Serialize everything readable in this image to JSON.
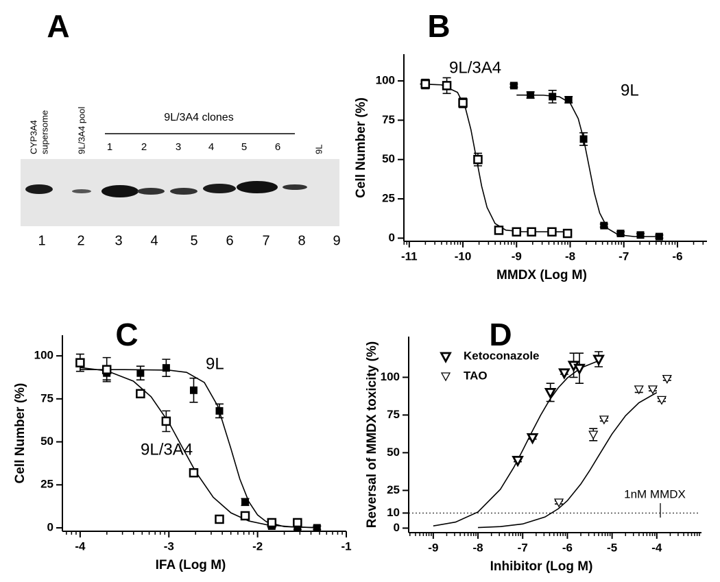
{
  "panel_a": {
    "label": "A",
    "group_label": "9L/3A4 clones",
    "lane_labels": [
      "CYP3A4",
      "supersome",
      "9L/3A4 pool",
      "1",
      "2",
      "3",
      "4",
      "5",
      "6",
      "9L"
    ],
    "lane_numbers": [
      "1",
      "2",
      "3",
      "4",
      "5",
      "6",
      "7",
      "8",
      "9"
    ]
  },
  "chart_data": [
    {
      "type": "scatter",
      "label": "B",
      "xlabel": "MMDX (Log M)",
      "ylabel": "Cell Number (%)",
      "xlim": [
        -11.1,
        -5.45
      ],
      "xticks": [
        -11,
        -10,
        -9,
        -8,
        -7,
        -6
      ],
      "ylim": [
        -2,
        117
      ],
      "yticks": [
        0,
        25,
        50,
        75,
        100
      ],
      "log_minor_ticks": true,
      "legend": "inline",
      "series": [
        {
          "name": "9L/3A4",
          "marker": "square-open",
          "color": "#000000",
          "x": [
            -10.7,
            -10.3,
            -10.0,
            -9.72,
            -9.33,
            -9.0,
            -8.72,
            -8.34,
            -8.05
          ],
          "values": [
            98,
            97,
            86,
            50,
            5,
            4,
            4,
            4,
            3
          ],
          "errors": [
            3,
            5,
            3,
            4,
            1,
            1,
            1,
            1,
            1
          ],
          "fit_x": [
            -10.8,
            -10.4,
            -10.1,
            -9.95,
            -9.85,
            -9.75,
            -9.65,
            -9.55,
            -9.4,
            -9.2,
            -8.9,
            -8.0
          ],
          "fit_values": [
            98,
            97.5,
            92.7,
            82.4,
            69,
            51,
            33,
            19.6,
            9.3,
            5.1,
            4.1,
            4
          ]
        },
        {
          "name": "9L",
          "marker": "square-filled",
          "color": "#000000",
          "x": [
            -9.05,
            -8.74,
            -8.33,
            -8.03,
            -7.75,
            -7.37,
            -7.06,
            -6.69,
            -6.34
          ],
          "values": [
            97,
            91,
            90,
            88,
            63,
            8,
            3,
            2,
            1
          ],
          "errors": [
            1,
            2,
            4,
            2,
            4,
            1,
            1,
            1,
            1
          ],
          "fit_x": [
            -9.0,
            -8.5,
            -8.2,
            -8.0,
            -7.85,
            -7.75,
            -7.65,
            -7.55,
            -7.45,
            -7.3,
            -7.1,
            -6.8,
            -6.3
          ],
          "fit_values": [
            91,
            90.9,
            89.9,
            85.9,
            76,
            63.2,
            46,
            28.8,
            16,
            6.1,
            2.1,
            1,
            1
          ]
        }
      ]
    },
    {
      "type": "scatter",
      "label": "C",
      "xlabel": "IFA (Log M)",
      "ylabel": "Cell Number (%)",
      "xlim": [
        -4.2,
        -1
      ],
      "xticks": [
        -4,
        -3,
        -2,
        -1
      ],
      "ylim": [
        -2,
        112
      ],
      "yticks": [
        0,
        25,
        50,
        75,
        100
      ],
      "log_minor_ticks": true,
      "legend": "inline",
      "series": [
        {
          "name": "9L",
          "marker": "square-filled",
          "color": "#000000",
          "x": [
            -3.7,
            -3.32,
            -3.03,
            -2.72,
            -2.43,
            -2.14,
            -1.84,
            -1.55,
            -1.33
          ],
          "values": [
            90,
            90,
            93,
            80,
            68,
            15,
            1,
            0,
            0
          ],
          "errors": [
            4,
            4,
            5,
            7,
            4,
            2,
            1,
            1,
            1
          ],
          "fit_x": [
            -4.0,
            -3.5,
            -3.0,
            -2.8,
            -2.6,
            -2.45,
            -2.3,
            -2.2,
            -2.1,
            -2.0,
            -1.9,
            -1.7,
            -1.3
          ],
          "fit_values": [
            92,
            92,
            91.7,
            90.4,
            84.5,
            70.9,
            46,
            28.4,
            15.3,
            7.5,
            3.5,
            0.7,
            0
          ]
        },
        {
          "name": "9L/3A4",
          "marker": "square-open",
          "color": "#000000",
          "x": [
            -4.0,
            -3.7,
            -3.32,
            -3.03,
            -2.72,
            -2.43,
            -2.14,
            -1.84,
            -1.55
          ],
          "values": [
            96,
            92,
            78,
            62,
            32,
            5,
            7,
            3,
            3
          ],
          "errors": [
            5,
            7,
            1,
            6,
            1,
            1,
            1,
            1,
            1
          ],
          "fit_x": [
            -4.0,
            -3.7,
            -3.4,
            -3.2,
            -3.0,
            -2.85,
            -2.7,
            -2.5,
            -2.3,
            -2.1,
            -1.9,
            -1.6,
            -1.3
          ],
          "fit_values": [
            93.2,
            91.3,
            85.3,
            76.2,
            61.2,
            47,
            32.8,
            17.8,
            8.7,
            4.0,
            1.8,
            0.5,
            0.1
          ]
        }
      ]
    },
    {
      "type": "scatter",
      "label": "D",
      "xlabel": "Inhibitor (Log M)",
      "ylabel": "Reversal of MMDX toxicity (%)",
      "xlim": [
        -9.55,
        -3.0
      ],
      "xticks": [
        -9,
        -8,
        -7,
        -6,
        -5,
        -4
      ],
      "ylim": [
        -3,
        127
      ],
      "yticks": [
        0,
        10,
        25,
        50,
        75,
        100
      ],
      "log_minor_ticks": true,
      "legend": "upper left",
      "reference_line": 10,
      "annotation": "1nM MMDX",
      "series": [
        {
          "name": "Ketoconazole",
          "marker": "triangle-bold",
          "color": "#000000",
          "x": [
            -7.11,
            -6.78,
            -6.38,
            -6.07,
            -5.86,
            -5.73,
            -5.3
          ],
          "values": [
            45,
            60,
            90,
            103,
            108,
            106,
            112
          ],
          "errors": [
            1,
            1,
            6,
            1,
            8,
            10,
            5
          ],
          "fit_x": [
            -9,
            -8.5,
            -8,
            -7.5,
            -7.2,
            -7.0,
            -6.8,
            -6.6,
            -6.4,
            -6.2,
            -6.0,
            -5.7,
            -5.3
          ],
          "fit_values": [
            1.46,
            4.0,
            10.7,
            25.7,
            40.2,
            51.6,
            63.4,
            74.8,
            84.9,
            93.2,
            99.6,
            106.2,
            111
          ]
        },
        {
          "name": "TAO",
          "marker": "triangle-open",
          "color": "#000000",
          "x": [
            -6.19,
            -5.42,
            -5.18,
            -4.4,
            -4.09,
            -3.89,
            -3.77
          ],
          "values": [
            17,
            62,
            72,
            92,
            92,
            85,
            99
          ],
          "errors": [
            1,
            4,
            1,
            2,
            1,
            1,
            1
          ],
          "fit_x": [
            -8,
            -7.5,
            -7,
            -6.5,
            -6.2,
            -6,
            -5.7,
            -5.5,
            -5.3,
            -5.0,
            -4.7,
            -4.4,
            -4.0
          ],
          "fit_values": [
            0.36,
            1.0,
            2.75,
            7.4,
            12.9,
            18.2,
            29.2,
            38.2,
            48,
            62.5,
            74.5,
            83.1,
            89.9
          ]
        }
      ]
    }
  ]
}
